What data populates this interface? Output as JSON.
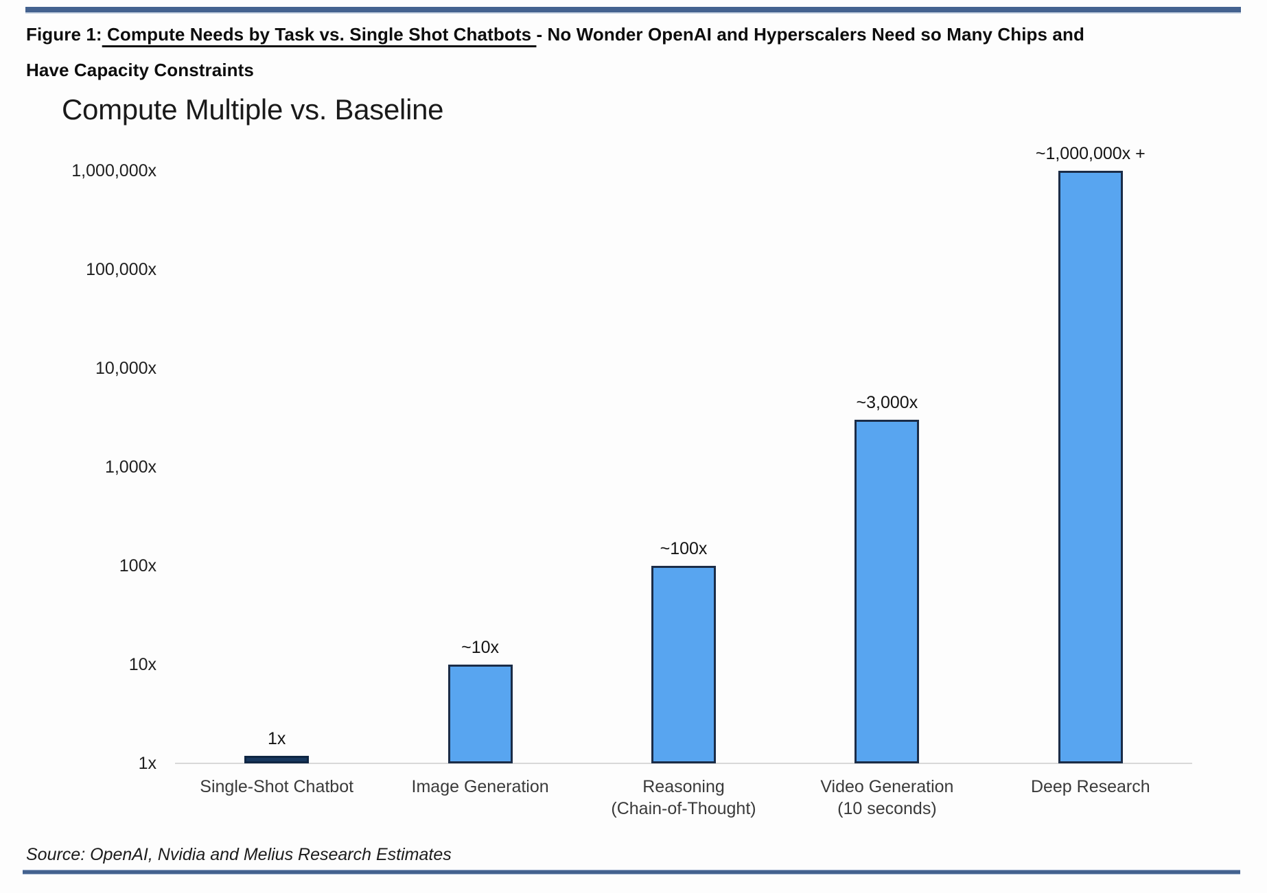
{
  "header": {
    "figure_prefix": "Figure 1:",
    "underlined_title": " Compute Needs by Task vs. Single Shot Chatbots ",
    "rest_line1": "- No Wonder OpenAI and Hyperscalers Need so Many Chips and",
    "line2": "Have Capacity Constraints"
  },
  "chart_data": {
    "type": "bar",
    "title": "Compute Multiple vs. Baseline",
    "yscale": "log10",
    "ylim": [
      1,
      1000000
    ],
    "grid": false,
    "legend": false,
    "ytick_values": [
      1,
      10,
      100,
      1000,
      10000,
      100000,
      1000000
    ],
    "ytick_labels": [
      "1x",
      "10x",
      "100x",
      "1,000x",
      "10,000x",
      "100,000x",
      "1,000,000x"
    ],
    "categories": [
      [
        "Single-Shot Chatbot"
      ],
      [
        "Image Generation"
      ],
      [
        "Reasoning",
        "(Chain-of-Thought)"
      ],
      [
        "Video Generation",
        "(10 seconds)"
      ],
      [
        "Deep Research"
      ]
    ],
    "values": [
      1,
      10,
      100,
      3000,
      1000000
    ],
    "value_labels": [
      "1x",
      "~10x",
      "~100x",
      "~3,000x",
      "~1,000,000x +"
    ],
    "bar_fill_colors": [
      "#17375E",
      "#58A5F0",
      "#58A5F0",
      "#58A5F0",
      "#58A5F0"
    ],
    "bar_border_colors": [
      "#0F2643",
      "#1B2C47",
      "#1B2C47",
      "#1B2C47",
      "#1B2C47"
    ],
    "axis_line_color": "#D8D8D8"
  },
  "source": {
    "text": "Source: OpenAI, Nvidia and Melius Research Estimates"
  },
  "colors": {
    "divider_blue": "#44628F",
    "light_blue_bar": "#58A5F0",
    "dark_navy_bar": "#17375E"
  }
}
